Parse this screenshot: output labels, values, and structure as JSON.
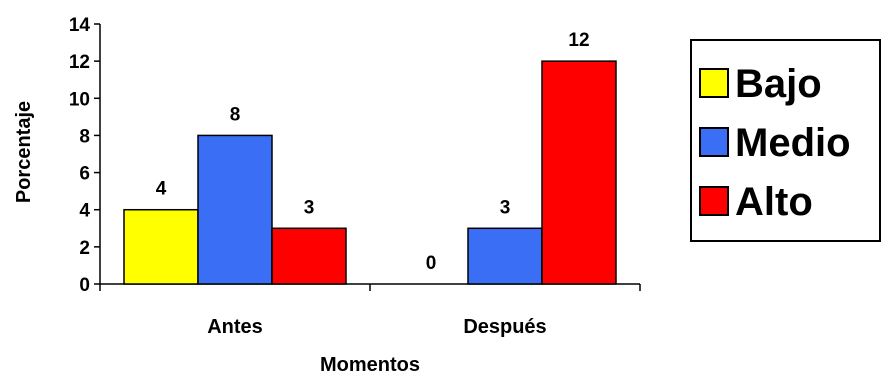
{
  "chart_data": {
    "type": "bar",
    "categories": [
      "Antes",
      "Después"
    ],
    "series": [
      {
        "name": "Bajo",
        "color": "#ffff00",
        "values": [
          4,
          0
        ]
      },
      {
        "name": "Medio",
        "color": "#3a6ff5",
        "values": [
          8,
          3
        ]
      },
      {
        "name": "Alto",
        "color": "#ff0000",
        "values": [
          3,
          12
        ]
      }
    ],
    "yticks": [
      "0",
      "2",
      "4",
      "6",
      "8",
      "10",
      "12",
      "14"
    ],
    "ylim": [
      0,
      14
    ],
    "xlabel": "Momentos",
    "ylabel": "Porcentaje",
    "legend_position": "right",
    "grid": false,
    "data_labels": true
  }
}
